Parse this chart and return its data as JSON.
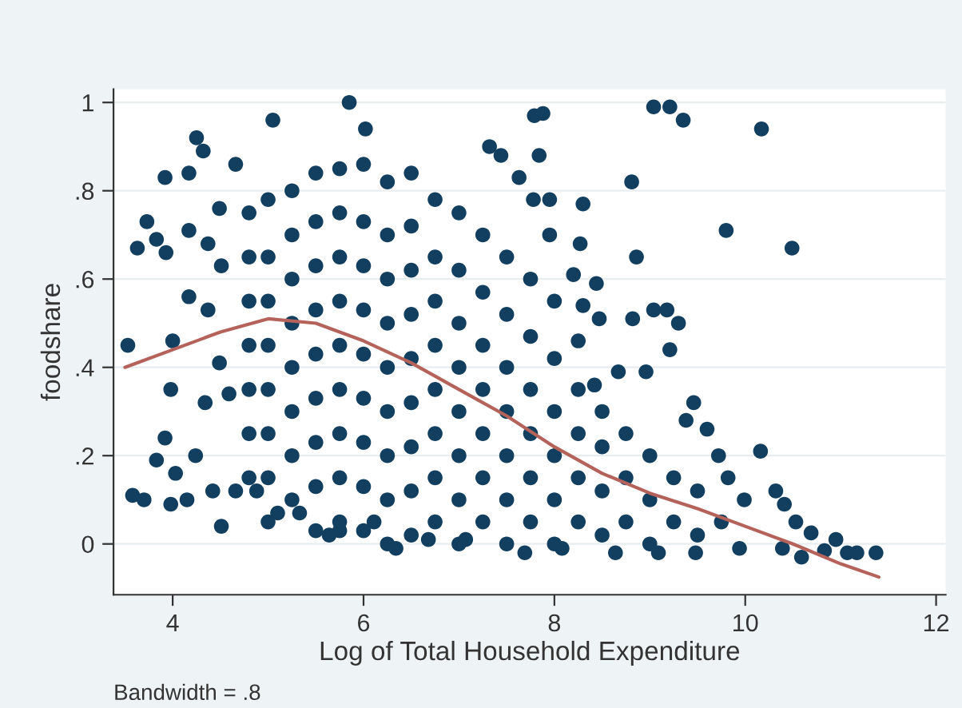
{
  "chart_data": {
    "type": "scatter",
    "xlabel": "Log of Total Household Expenditure",
    "ylabel": "foodshare",
    "annotations": [
      "Bandwidth = .8"
    ],
    "xlim": [
      3.38,
      12.1
    ],
    "ylim": [
      -0.115,
      1.03
    ],
    "xticks": [
      4,
      6,
      8,
      10,
      12
    ],
    "yticks": [
      {
        "value": 0,
        "label": "0"
      },
      {
        "value": 0.2,
        "label": ".2"
      },
      {
        "value": 0.4,
        "label": ".4"
      },
      {
        "value": 0.6,
        "label": ".6"
      },
      {
        "value": 0.8,
        "label": ".8"
      },
      {
        "value": 1,
        "label": "1"
      }
    ],
    "grid": "y",
    "legend": false,
    "marker": "circle",
    "series": [
      {
        "color": "#123f5f",
        "x": [
          3.53,
          3.63,
          3.73,
          3.92,
          3.83,
          3.93,
          4.25,
          4.32,
          4.17,
          4.17,
          4.37,
          4.0,
          3.98,
          4.17,
          4.37,
          4.34,
          3.92,
          3.83,
          3.58,
          3.7,
          3.98,
          4.15,
          4.03,
          4.24,
          4.51,
          4.42,
          4.66,
          4.59,
          4.49,
          4.51,
          4.49,
          4.66,
          5.05,
          5.85,
          6.02,
          5.64,
          5.75,
          5.1,
          9.04,
          9.21,
          9.35,
          10.17,
          7.79,
          7.88,
          7.84,
          7.32,
          7.44,
          8.81,
          9.8,
          10.49,
          8.3,
          8.86,
          8.27,
          7.95,
          7.78,
          7.63,
          7.95,
          8.2,
          8.44,
          8.3,
          8.47,
          8.82,
          9.04,
          9.18,
          9.3,
          9.21,
          8.96,
          8.67,
          8.42,
          9.46,
          9.38,
          9.6,
          10.16,
          9.72,
          9.82,
          9.99,
          10.32,
          10.41,
          10.53,
          10.69,
          10.95,
          10.83,
          11.07,
          11.37,
          11.17,
          10.59,
          10.39,
          9.94,
          9.48,
          9.09,
          8.64,
          8.08,
          7.69,
          6.34,
          6.68,
          7.07,
          6.11,
          5.33,
          4.88,
          4.8,
          4.8,
          4.8,
          4.8,
          4.8,
          4.8,
          4.8,
          5.0,
          5.0,
          5.0,
          5.0,
          5.0,
          5.0,
          5.0,
          5.0,
          5.25,
          5.25,
          5.25,
          5.25,
          5.25,
          5.25,
          5.25,
          5.25,
          5.5,
          5.5,
          5.5,
          5.5,
          5.5,
          5.5,
          5.5,
          5.5,
          5.5,
          5.75,
          5.75,
          5.75,
          5.75,
          5.75,
          5.75,
          5.75,
          5.75,
          5.75,
          6.0,
          6.0,
          6.0,
          6.0,
          6.0,
          6.0,
          6.0,
          6.0,
          6.0,
          6.25,
          6.25,
          6.25,
          6.25,
          6.25,
          6.25,
          6.25,
          6.25,
          6.25,
          6.5,
          6.5,
          6.5,
          6.5,
          6.5,
          6.5,
          6.5,
          6.5,
          6.5,
          6.75,
          6.75,
          6.75,
          6.75,
          6.75,
          6.75,
          6.75,
          6.75,
          7.0,
          7.0,
          7.0,
          7.0,
          7.0,
          7.0,
          7.0,
          7.0,
          7.25,
          7.25,
          7.25,
          7.25,
          7.25,
          7.25,
          7.25,
          7.5,
          7.5,
          7.5,
          7.5,
          7.5,
          7.5,
          7.5,
          7.75,
          7.75,
          7.75,
          7.75,
          7.75,
          7.75,
          8.0,
          8.0,
          8.0,
          8.0,
          8.0,
          8.0,
          8.25,
          8.25,
          8.25,
          8.25,
          8.25,
          8.5,
          8.5,
          8.5,
          8.5,
          8.75,
          8.75,
          8.75,
          9.0,
          9.0,
          9.0,
          9.25,
          9.25,
          9.5,
          9.5,
          9.75
        ],
        "values": [
          0.45,
          0.67,
          0.73,
          0.83,
          0.69,
          0.66,
          0.92,
          0.89,
          0.84,
          0.71,
          0.68,
          0.46,
          0.35,
          0.56,
          0.53,
          0.32,
          0.24,
          0.19,
          0.11,
          0.1,
          0.09,
          0.1,
          0.16,
          0.2,
          0.04,
          0.12,
          0.12,
          0.34,
          0.41,
          0.63,
          0.76,
          0.86,
          0.96,
          1.0,
          0.94,
          0.02,
          0.03,
          0.07,
          0.99,
          0.99,
          0.96,
          0.94,
          0.97,
          0.975,
          0.88,
          0.9,
          0.88,
          0.82,
          0.71,
          0.67,
          0.77,
          0.65,
          0.68,
          0.78,
          0.78,
          0.83,
          0.7,
          0.61,
          0.59,
          0.54,
          0.51,
          0.51,
          0.53,
          0.53,
          0.5,
          0.44,
          0.39,
          0.39,
          0.36,
          0.32,
          0.28,
          0.26,
          0.21,
          0.2,
          0.15,
          0.1,
          0.12,
          0.09,
          0.05,
          0.025,
          0.01,
          -0.015,
          -0.02,
          -0.02,
          -0.02,
          -0.03,
          -0.01,
          -0.01,
          -0.02,
          -0.02,
          -0.02,
          -0.01,
          -0.02,
          -0.01,
          0.01,
          0.01,
          0.05,
          0.07,
          0.12,
          0.15,
          0.25,
          0.35,
          0.45,
          0.55,
          0.65,
          0.75,
          0.05,
          0.15,
          0.25,
          0.35,
          0.45,
          0.55,
          0.65,
          0.78,
          0.1,
          0.2,
          0.3,
          0.4,
          0.5,
          0.6,
          0.7,
          0.8,
          0.03,
          0.13,
          0.23,
          0.33,
          0.43,
          0.53,
          0.63,
          0.73,
          0.84,
          0.05,
          0.15,
          0.25,
          0.35,
          0.45,
          0.55,
          0.65,
          0.75,
          0.85,
          0.03,
          0.13,
          0.23,
          0.33,
          0.43,
          0.53,
          0.63,
          0.73,
          0.86,
          0.0,
          0.1,
          0.2,
          0.3,
          0.4,
          0.5,
          0.6,
          0.7,
          0.82,
          0.02,
          0.12,
          0.22,
          0.32,
          0.42,
          0.52,
          0.62,
          0.72,
          0.84,
          0.05,
          0.15,
          0.25,
          0.35,
          0.45,
          0.55,
          0.65,
          0.78,
          0.0,
          0.1,
          0.2,
          0.3,
          0.4,
          0.5,
          0.62,
          0.75,
          0.05,
          0.15,
          0.25,
          0.35,
          0.45,
          0.57,
          0.7,
          0.0,
          0.1,
          0.2,
          0.3,
          0.4,
          0.52,
          0.65,
          0.05,
          0.15,
          0.25,
          0.35,
          0.47,
          0.6,
          0.0,
          0.1,
          0.2,
          0.3,
          0.42,
          0.55,
          0.05,
          0.15,
          0.25,
          0.35,
          0.46,
          0.02,
          0.12,
          0.22,
          0.3,
          0.05,
          0.15,
          0.25,
          0.0,
          0.1,
          0.2,
          0.05,
          0.15,
          0.02,
          0.12,
          0.05
        ]
      },
      {
        "type": "line",
        "marker": "none",
        "color": "#b5635a",
        "x": [
          3.5,
          4,
          4.5,
          5,
          5.5,
          6,
          6.5,
          7,
          7.5,
          8,
          8.5,
          9,
          9.5,
          10,
          10.5,
          11,
          11.4
        ],
        "values": [
          0.4,
          0.44,
          0.48,
          0.51,
          0.5,
          0.46,
          0.41,
          0.35,
          0.29,
          0.22,
          0.16,
          0.115,
          0.08,
          0.04,
          0.0,
          -0.045,
          -0.075
        ]
      }
    ]
  }
}
